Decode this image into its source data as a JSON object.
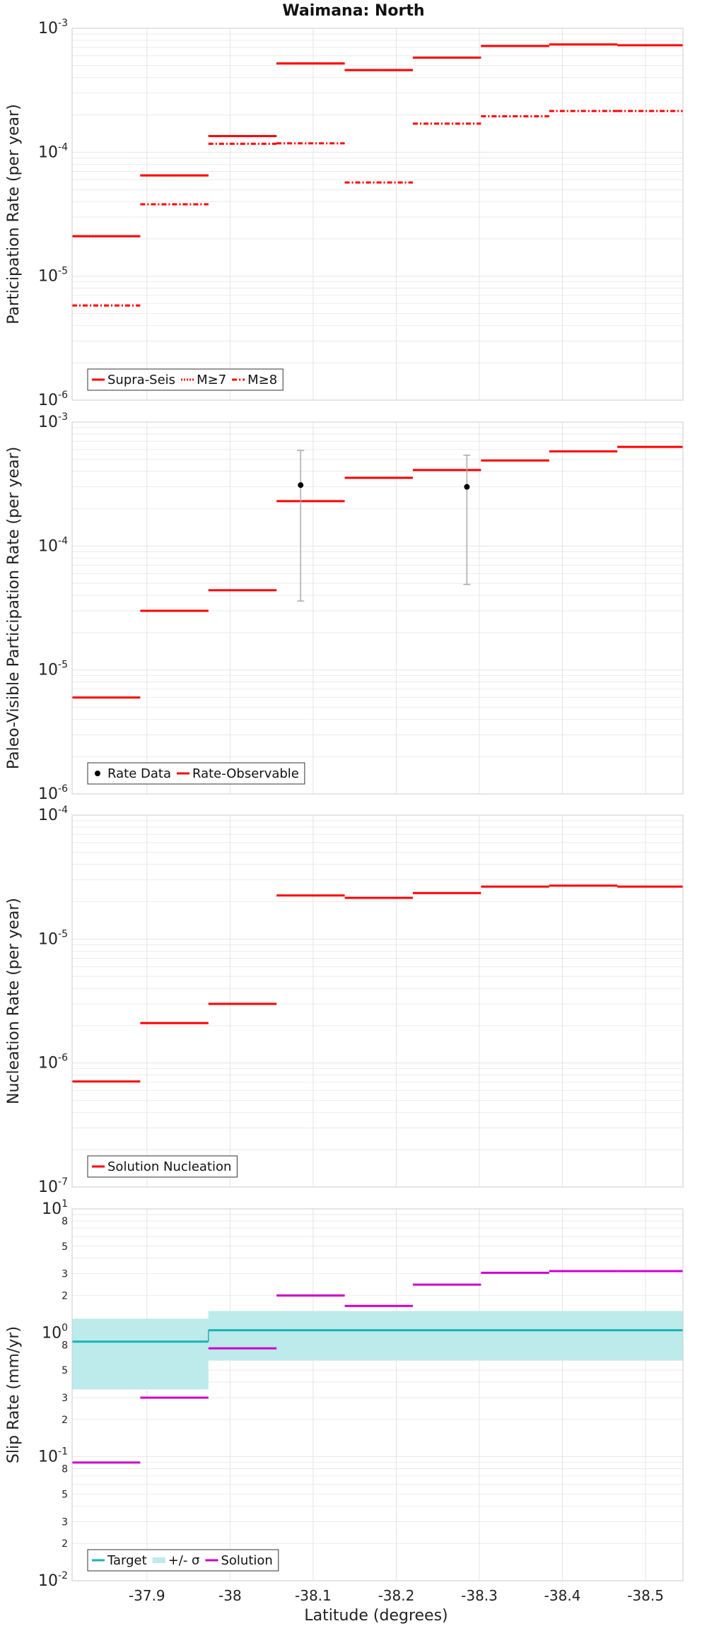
{
  "title": "Waimana: North",
  "xlabel": "Latitude (degrees)",
  "x_ticks": [
    -37.9,
    -38,
    -38.1,
    -38.2,
    -38.3,
    -38.4,
    -38.5
  ],
  "x_tick_labels": [
    "-37.9",
    "-38",
    "-38.1",
    "-38.2",
    "-38.3",
    "-38.4",
    "-38.5"
  ],
  "x_range": [
    -37.81,
    -38.545
  ],
  "colors": {
    "red": "#ff0000",
    "magenta": "#cc00cc",
    "cyan": "#18b4b4",
    "band": "#bdeaea",
    "data": "#000000",
    "errbar": "#aaaaaa",
    "grid": "#e4e4e4"
  },
  "chart_data": [
    {
      "type": "line",
      "ylabel": "Participation Rate (per year)",
      "yscale": "log",
      "ylim": [
        1e-06,
        0.001
      ],
      "segment_edges": [
        -37.81,
        -37.892,
        -37.974,
        -38.056,
        -38.138,
        -38.22,
        -38.302,
        -38.384,
        -38.466,
        -38.545
      ],
      "series": [
        {
          "name": "Supra-Seis",
          "style": "solid",
          "values": [
            2.1e-05,
            6.5e-05,
            0.000135,
            0.00052,
            0.00046,
            0.00058,
            0.00072,
            0.00074,
            0.00073
          ]
        },
        {
          "name": "M≥7",
          "style": "dotted",
          "values": [
            2.1e-05,
            6.5e-05,
            0.000135,
            0.00052,
            0.00046,
            0.00058,
            0.00072,
            0.00074,
            0.00073
          ]
        },
        {
          "name": "M≥8",
          "style": "dashdot",
          "values": [
            5.8e-06,
            3.8e-05,
            0.000117,
            0.000118,
            5.7e-05,
            0.00017,
            0.000195,
            0.000215,
            0.000215
          ]
        }
      ],
      "legend": "bottom-left",
      "grid": true
    },
    {
      "type": "line",
      "ylabel": "Paleo-Visible Participation Rate (per year)",
      "yscale": "log",
      "ylim": [
        1e-06,
        0.001
      ],
      "segment_edges": [
        -37.81,
        -37.892,
        -37.974,
        -38.056,
        -38.138,
        -38.22,
        -38.302,
        -38.384,
        -38.466,
        -38.545
      ],
      "series": [
        {
          "name": "Rate-Observable",
          "style": "solid",
          "values": [
            6e-06,
            3e-05,
            4.4e-05,
            0.00023,
            0.000355,
            0.00041,
            0.00049,
            0.00058,
            0.00063
          ]
        }
      ],
      "points": {
        "name": "Rate Data",
        "x": [
          -38.085,
          -38.285
        ],
        "y": [
          0.00031,
          0.0003
        ],
        "y_low": [
          3.6e-05,
          4.9e-05
        ],
        "y_high": [
          0.00059,
          0.00054
        ]
      },
      "legend": "bottom-left",
      "grid": true
    },
    {
      "type": "line",
      "ylabel": "Nucleation Rate (per year)",
      "yscale": "log",
      "ylim": [
        1e-07,
        0.0001
      ],
      "segment_edges": [
        -37.81,
        -37.892,
        -37.974,
        -38.056,
        -38.138,
        -38.22,
        -38.302,
        -38.384,
        -38.466,
        -38.545
      ],
      "series": [
        {
          "name": "Solution Nucleation",
          "style": "solid",
          "values": [
            7.1e-07,
            2.1e-06,
            3e-06,
            2.25e-05,
            2.15e-05,
            2.35e-05,
            2.65e-05,
            2.7e-05,
            2.65e-05
          ]
        }
      ],
      "legend": "bottom-left",
      "grid": true
    },
    {
      "type": "line",
      "ylabel": "Slip Rate (mm/yr)",
      "yscale": "log",
      "ylim": [
        0.01,
        10
      ],
      "segment_edges": [
        -37.81,
        -37.892,
        -37.974,
        -38.056,
        -38.138,
        -38.22,
        -38.302,
        -38.384,
        -38.466,
        -38.545
      ],
      "series": [
        {
          "name": "Solution",
          "style": "solid",
          "values": [
            0.09,
            0.3,
            0.75,
            2.0,
            1.65,
            2.45,
            3.05,
            3.15,
            3.15
          ]
        }
      ],
      "target": {
        "name": "Target",
        "edges": [
          -37.81,
          -37.974,
          -38.545
        ],
        "values": [
          0.85,
          1.05
        ],
        "sigma_name": "+/- σ",
        "band_low": [
          0.35,
          0.6
        ],
        "band_high": [
          1.3,
          1.5
        ]
      },
      "legend": "bottom-left",
      "grid": true
    }
  ],
  "legends": [
    [
      {
        "label": "Supra-Seis",
        "style": "solid",
        "color": "#ff0000"
      },
      {
        "label": "M≥7",
        "style": "dotted",
        "color": "#ff0000"
      },
      {
        "label": "M≥8",
        "style": "dashdot",
        "color": "#ff0000"
      }
    ],
    [
      {
        "label": "Rate Data",
        "style": "dot",
        "color": "#000000"
      },
      {
        "label": "Rate-Observable",
        "style": "solid",
        "color": "#ff0000"
      }
    ],
    [
      {
        "label": "Solution Nucleation",
        "style": "solid",
        "color": "#ff0000"
      }
    ],
    [
      {
        "label": "Target",
        "style": "solid",
        "color": "#18b4b4"
      },
      {
        "label": "+/- σ",
        "style": "band",
        "color": "#bdeaea"
      },
      {
        "label": "Solution",
        "style": "solid",
        "color": "#cc00cc"
      }
    ]
  ]
}
